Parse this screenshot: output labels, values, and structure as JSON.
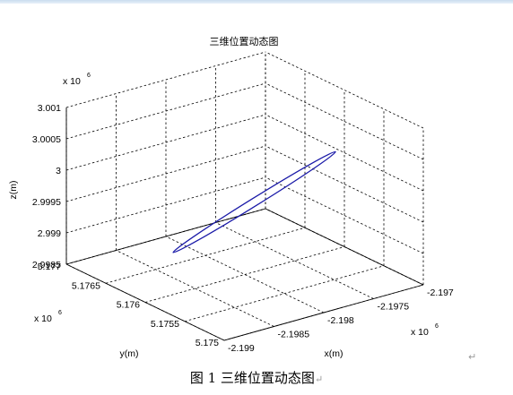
{
  "caption": {
    "text": "图 1  三维位置动态图",
    "mark": "↵"
  },
  "para_mark": "↵",
  "chart_data": {
    "type": "line3d",
    "title": "三维位置动态图",
    "xlabel": "x(m)",
    "ylabel": "y(m)",
    "zlabel": "z(m)",
    "x_multiplier": "x 10",
    "y_multiplier": "x 10",
    "z_multiplier": "x 10",
    "multiplier_exponent": "6",
    "xlim": [
      -2.199,
      -2.197
    ],
    "ylim": [
      5.175,
      5.177
    ],
    "zlim": [
      2.9985,
      3.001
    ],
    "x_ticks": [
      "-2.199",
      "-2.1985",
      "-2.198",
      "-2.1975",
      "-2.197"
    ],
    "y_ticks": [
      "5.175",
      "5.1755",
      "5.176",
      "5.1765",
      "5.177"
    ],
    "z_ticks": [
      "2.9985",
      "2.999",
      "2.9995",
      "3",
      "3.0005",
      "3.001"
    ],
    "grid": true,
    "line_color": "#1a1aa8",
    "series": [
      {
        "shape": "ellipse",
        "center": {
          "x": -2.19796,
          "y": 5.17593,
          "z": 2.99968
        },
        "end_a": {
          "x": -2.19864,
          "y": 5.1761,
          "z": 2.99908
        },
        "end_b": {
          "x": -2.19727,
          "y": 5.17577,
          "z": 3.00028
        },
        "half_width": 5e-05
      }
    ]
  }
}
